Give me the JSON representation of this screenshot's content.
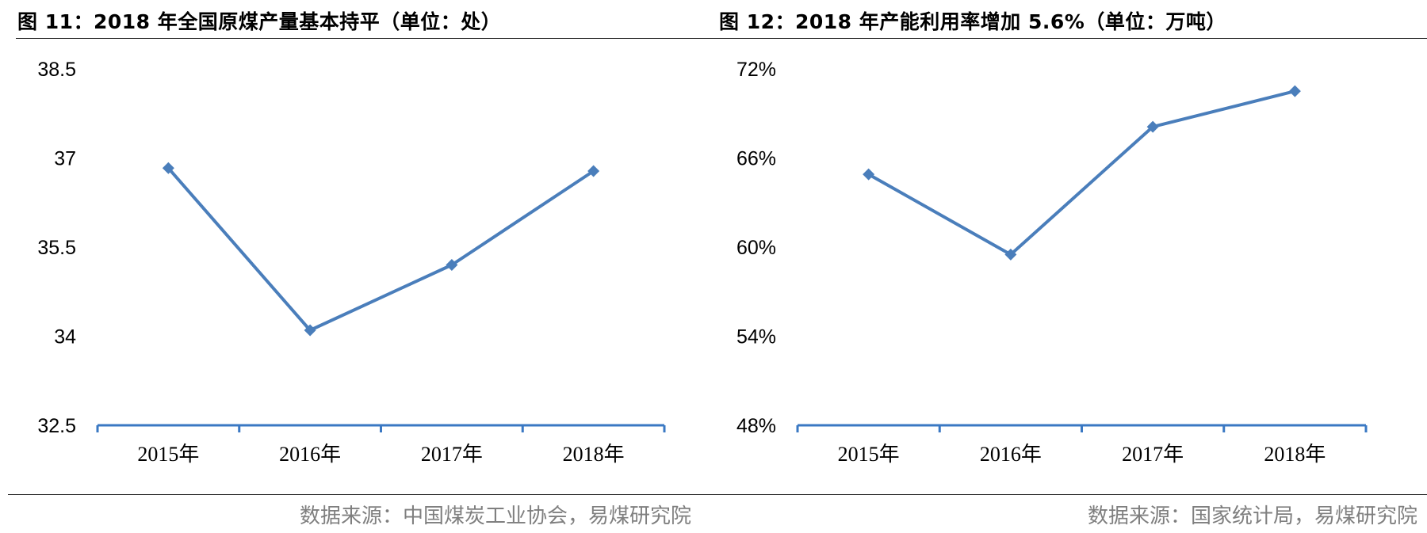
{
  "figures": [
    {
      "title": "图 11：2018 年全国原煤产量基本持平（单位：处）",
      "source": "数据来源：中国煤炭工业协会，易煤研究院"
    },
    {
      "title": "图 12：2018 年产能利用率增加 5.6%（单位：万吨）",
      "source": "数据来源：国家统计局，易煤研究院"
    }
  ],
  "chart_data": [
    {
      "type": "line",
      "categories": [
        "2015年",
        "2016年",
        "2017年",
        "2018年"
      ],
      "series": [
        {
          "values": [
            36.83,
            34.1,
            35.2,
            36.78
          ]
        }
      ],
      "ylim": [
        32.5,
        38.5
      ],
      "yticks": [
        "38.5",
        "37",
        "35.5",
        "34",
        "32.5"
      ],
      "line_color": "#4a7ebb",
      "axis_color": "#3a78c3",
      "grid": false,
      "legend": "none"
    },
    {
      "type": "line",
      "categories": [
        "2015年",
        "2016年",
        "2017年",
        "2018年"
      ],
      "series": [
        {
          "values": [
            64.9,
            59.5,
            68.1,
            70.5
          ]
        }
      ],
      "ylim": [
        48,
        72
      ],
      "yticks": [
        "72%",
        "66%",
        "60%",
        "54%",
        "48%"
      ],
      "line_color": "#4a7ebb",
      "axis_color": "#3a78c3",
      "grid": false,
      "legend": "none"
    }
  ]
}
